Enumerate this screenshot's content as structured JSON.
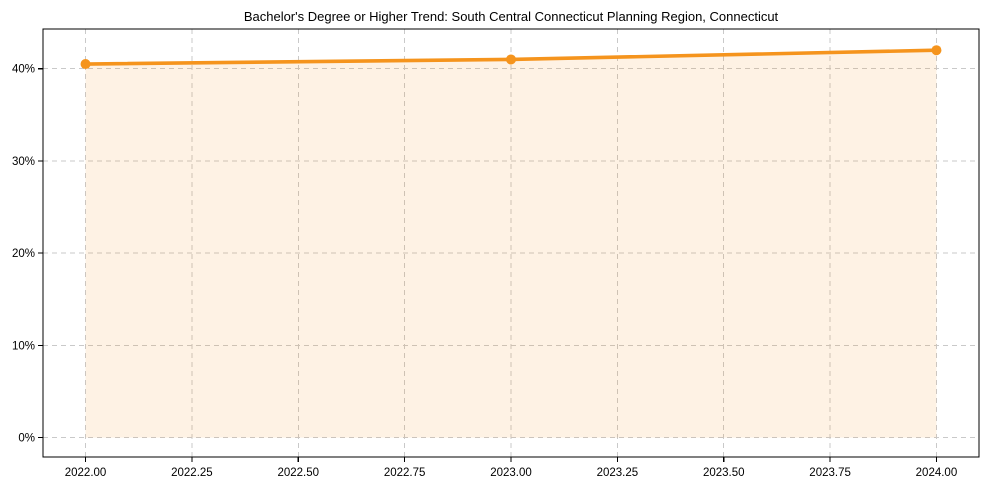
{
  "chart_data": {
    "type": "line",
    "title": "Bachelor's Degree or Higher Trend: South Central Connecticut Planning Region, Connecticut",
    "x": [
      2022.0,
      2023.0,
      2024.0
    ],
    "y": [
      40.5,
      41.0,
      42.0
    ],
    "y_format": "percent",
    "xlim": [
      2021.9,
      2024.1
    ],
    "ylim": [
      -2.1,
      44.3
    ],
    "x_ticks": [
      {
        "value": 2022.0,
        "label": "2022.00"
      },
      {
        "value": 2022.25,
        "label": "2022.25"
      },
      {
        "value": 2022.5,
        "label": "2022.50"
      },
      {
        "value": 2022.75,
        "label": "2022.75"
      },
      {
        "value": 2023.0,
        "label": "2023.00"
      },
      {
        "value": 2023.25,
        "label": "2023.25"
      },
      {
        "value": 2023.5,
        "label": "2023.50"
      },
      {
        "value": 2023.75,
        "label": "2023.75"
      },
      {
        "value": 2024.0,
        "label": "2024.00"
      }
    ],
    "y_ticks": [
      {
        "value": 0,
        "label": "0%"
      },
      {
        "value": 10,
        "label": "10%"
      },
      {
        "value": 20,
        "label": "20%"
      },
      {
        "value": 30,
        "label": "30%"
      },
      {
        "value": 40,
        "label": "40%"
      }
    ],
    "grid": true,
    "grid_style": "dashed",
    "area_fill": true,
    "area_baseline": 0,
    "legend": "none",
    "colors": {
      "line": "#f5941d",
      "marker": "#f5941d",
      "area": "#f5941d",
      "area_opacity": 0.12,
      "grid": "#c9c9c9",
      "spine": "#000000",
      "tick": "#000000",
      "text": "#000000",
      "background": "#ffffff"
    }
  }
}
